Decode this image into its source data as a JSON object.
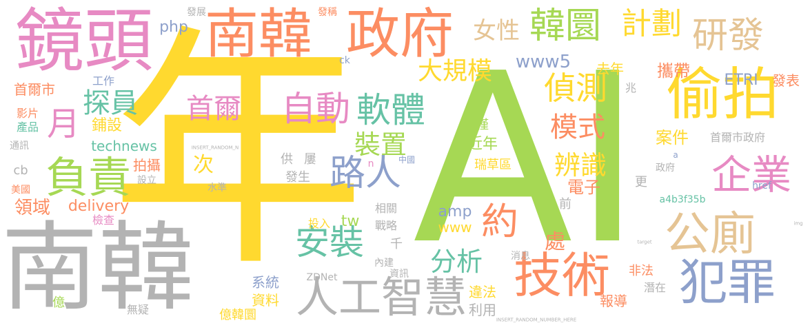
{
  "palette": {
    "yellow": "#FFD92F",
    "green": "#A6D854",
    "gray": "#B3B3B3",
    "pink": "#E78AC3",
    "orange": "#FC8D62",
    "teal": "#66C2A5",
    "blue": "#8DA0CB",
    "tan": "#E5C494"
  },
  "words": [
    {
      "id": "w0",
      "text": "年",
      "color": "#FFD92F"
    },
    {
      "id": "w1",
      "text": "AI",
      "color": "#A6D854"
    },
    {
      "id": "w2",
      "text": "南韓",
      "color": "#B3B3B3"
    },
    {
      "id": "w3",
      "text": "鏡頭",
      "color": "#E78AC3"
    },
    {
      "id": "w4",
      "text": "南韓",
      "color": "#FC8D62"
    },
    {
      "id": "w5",
      "text": "政府",
      "color": "#FC8D62"
    },
    {
      "id": "w6",
      "text": "偷拍",
      "color": "#FFD92F"
    },
    {
      "id": "w7",
      "text": "韓圜",
      "color": "#A6D854"
    },
    {
      "id": "w8",
      "text": "研發",
      "color": "#E5C494"
    },
    {
      "id": "w9",
      "text": "計劃",
      "color": "#FFD92F"
    },
    {
      "id": "w10",
      "text": "女性",
      "color": "#E5C494"
    },
    {
      "id": "w11",
      "text": "大規模",
      "color": "#FFD92F"
    },
    {
      "id": "w12",
      "text": "自動",
      "color": "#E78AC3"
    },
    {
      "id": "w13",
      "text": "軟體",
      "color": "#66C2A5"
    },
    {
      "id": "w14",
      "text": "偵測",
      "color": "#FFD92F"
    },
    {
      "id": "w15",
      "text": "模式",
      "color": "#FC8D62"
    },
    {
      "id": "w16",
      "text": "企業",
      "color": "#E78AC3"
    },
    {
      "id": "w17",
      "text": "公廁",
      "color": "#E5C494"
    },
    {
      "id": "w18",
      "text": "犯罪",
      "color": "#8DA0CB"
    },
    {
      "id": "w19",
      "text": "技術",
      "color": "#FC8D62"
    },
    {
      "id": "w20",
      "text": "人工智慧",
      "color": "#B3B3B3"
    },
    {
      "id": "w21",
      "text": "負責",
      "color": "#A6D854"
    },
    {
      "id": "w22",
      "text": "首爾",
      "color": "#E78AC3"
    },
    {
      "id": "w23",
      "text": "探員",
      "color": "#66C2A5"
    },
    {
      "id": "w24",
      "text": "月",
      "color": "#E78AC3"
    },
    {
      "id": "w25",
      "text": "路人",
      "color": "#8DA0CB"
    },
    {
      "id": "w26",
      "text": "安裝",
      "color": "#66C2A5"
    },
    {
      "id": "w27",
      "text": "約",
      "color": "#FC8D62"
    },
    {
      "id": "w28",
      "text": "裝置",
      "color": "#A6D854"
    },
    {
      "id": "w29",
      "text": "辨識",
      "color": "#FFD92F"
    },
    {
      "id": "w30",
      "text": "分析",
      "color": "#66C2A5"
    },
    {
      "id": "w31",
      "text": "首爾市",
      "color": "#FC8D62"
    },
    {
      "id": "w32",
      "text": "www5",
      "color": "#8DA0CB"
    },
    {
      "id": "w33",
      "text": "去年",
      "color": "#FFD92F"
    },
    {
      "id": "w34",
      "text": "攜帶",
      "color": "#FC8D62"
    },
    {
      "id": "w35",
      "text": "ETRI",
      "color": "#8DA0CB"
    },
    {
      "id": "w36",
      "text": "發表",
      "color": "#FC8D62"
    },
    {
      "id": "w37",
      "text": "technews",
      "color": "#66C2A5"
    },
    {
      "id": "w38",
      "text": "次",
      "color": "#FFD92F"
    },
    {
      "id": "w39",
      "text": "拍攝",
      "color": "#FC8D62"
    },
    {
      "id": "w40",
      "text": "領域",
      "color": "#FC8D62"
    },
    {
      "id": "w41",
      "text": "delivery",
      "color": "#FC8D62"
    },
    {
      "id": "w42",
      "text": "amp",
      "color": "#8DA0CB"
    },
    {
      "id": "w43",
      "text": "www",
      "color": "#FFD92F"
    },
    {
      "id": "w44",
      "text": "tw",
      "color": "#A6D854"
    },
    {
      "id": "w45",
      "text": "處",
      "color": "#FC8D62"
    },
    {
      "id": "w46",
      "text": "案件",
      "color": "#FFD92F"
    },
    {
      "id": "w47",
      "text": "首爾市政府",
      "color": "#B3B3B3"
    },
    {
      "id": "w48",
      "text": "電子",
      "color": "#FC8D62"
    },
    {
      "id": "w49",
      "text": "系統",
      "color": "#8DA0CB"
    },
    {
      "id": "w50",
      "text": "資料",
      "color": "#FFD92F"
    },
    {
      "id": "w51",
      "text": "違法",
      "color": "#FFD92F"
    },
    {
      "id": "w52",
      "text": "利用",
      "color": "#B3B3B3"
    },
    {
      "id": "w53",
      "text": "報導",
      "color": "#FC8D62"
    },
    {
      "id": "w54",
      "text": "非法",
      "color": "#FC8D62"
    },
    {
      "id": "w55",
      "text": "潛在",
      "color": "#B3B3B3"
    },
    {
      "id": "w56",
      "text": "鋪設",
      "color": "#FFD92F"
    },
    {
      "id": "w57",
      "text": "影片",
      "color": "#FC8D62"
    },
    {
      "id": "w58",
      "text": "產品",
      "color": "#66C2A5"
    },
    {
      "id": "w59",
      "text": "工作",
      "color": "#8DA0CB"
    },
    {
      "id": "w60",
      "text": "php",
      "color": "#8DA0CB"
    },
    {
      "id": "w61",
      "text": "發展",
      "color": "#B3B3B3"
    },
    {
      "id": "w62",
      "text": "瑞草區",
      "color": "#FFD92F"
    },
    {
      "id": "w63",
      "text": "近年",
      "color": "#A6D854"
    },
    {
      "id": "w64",
      "text": "僅",
      "color": "#A6D854"
    },
    {
      "id": "w65",
      "text": "a4b3f35b",
      "color": "#66C2A5"
    },
    {
      "id": "w66",
      "text": "href",
      "color": "#8DA0CB"
    },
    {
      "id": "w67",
      "text": "更",
      "color": "#B3B3B3"
    },
    {
      "id": "w68",
      "text": "前",
      "color": "#B3B3B3"
    },
    {
      "id": "w69",
      "text": "兆",
      "color": "#B3B3B3"
    },
    {
      "id": "w70",
      "text": "億韓圜",
      "color": "#FFD92F"
    },
    {
      "id": "w71",
      "text": "無疑",
      "color": "#B3B3B3"
    },
    {
      "id": "w72",
      "text": "億",
      "color": "#A6D854"
    },
    {
      "id": "w73",
      "text": "檢查",
      "color": "#E78AC3"
    },
    {
      "id": "w74",
      "text": "設立",
      "color": "#B3B3B3"
    },
    {
      "id": "w75",
      "text": "美國",
      "color": "#FC8D62"
    },
    {
      "id": "w76",
      "text": "cb",
      "color": "#B3B3B3"
    },
    {
      "id": "w77",
      "text": "通訊",
      "color": "#B3B3B3"
    },
    {
      "id": "w78",
      "text": "水準",
      "color": "#B3B3B3"
    },
    {
      "id": "w79",
      "text": "發生",
      "color": "#B3B3B3"
    },
    {
      "id": "w80",
      "text": "供",
      "color": "#B3B3B3"
    },
    {
      "id": "w81",
      "text": "屢",
      "color": "#B3B3B3"
    },
    {
      "id": "w82",
      "text": "相關",
      "color": "#B3B3B3"
    },
    {
      "id": "w83",
      "text": "戰略",
      "color": "#B3B3B3"
    },
    {
      "id": "w84",
      "text": "千",
      "color": "#B3B3B3"
    },
    {
      "id": "w85",
      "text": "投入",
      "color": "#FFD92F"
    },
    {
      "id": "w86",
      "text": "內建",
      "color": "#B3B3B3"
    },
    {
      "id": "w87",
      "text": "資訊",
      "color": "#B3B3B3"
    },
    {
      "id": "w88",
      "text": "消息",
      "color": "#B3B3B3"
    },
    {
      "id": "w89",
      "text": "ZDNet",
      "color": "#B3B3B3"
    },
    {
      "id": "w90",
      "text": "中國",
      "color": "#8DA0CB"
    },
    {
      "id": "w91",
      "text": "政府",
      "color": "#B3B3B3"
    },
    {
      "id": "w92",
      "text": "ck",
      "color": "#8DA0CB"
    },
    {
      "id": "w93",
      "text": "發稱",
      "color": "#FC8D62"
    },
    {
      "id": "w94",
      "text": "n",
      "color": "#E78AC3"
    },
    {
      "id": "w95",
      "text": "INSERT_RANDOM_N",
      "color": "#B3B3B3"
    },
    {
      "id": "w96",
      "text": "INSERT_RANDOM_NUMBER_HERE",
      "color": "#B3B3B3"
    },
    {
      "id": "w97",
      "text": "a",
      "color": "#8DA0CB"
    },
    {
      "id": "w98",
      "text": "img",
      "color": "#B3B3B3"
    },
    {
      "id": "w99",
      "text": "target",
      "color": "#B3B3B3"
    }
  ]
}
